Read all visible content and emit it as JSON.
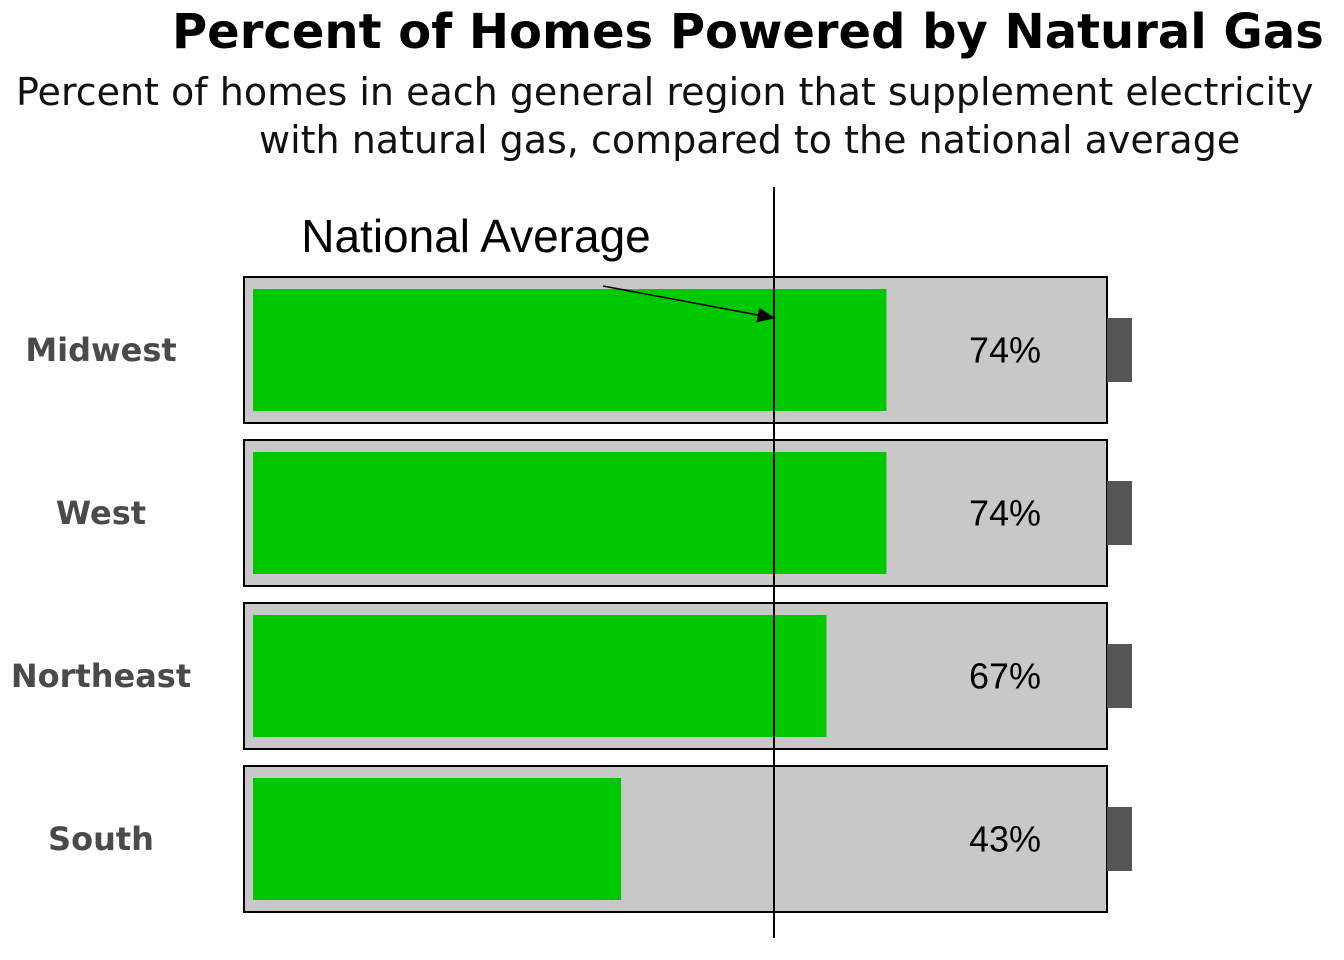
{
  "title": "Percent of Homes Powered by Natural Gas",
  "subtitle_line1": "Percent of homes in each general region that supplement electricity",
  "subtitle_line2": "with natural gas, compared to the national average",
  "colors": {
    "fill": "#00c800",
    "track": "#c8c8c8",
    "cap": "#555555",
    "label": "#4a4a4a",
    "outline": "#000000"
  },
  "chart_data": {
    "type": "bar",
    "orientation": "horizontal",
    "title": "Percent of Homes Powered by Natural Gas",
    "subtitle": "Percent of homes in each general region that supplement electricity with natural gas, compared to the national average",
    "categories": [
      "Midwest",
      "West",
      "Northeast",
      "South"
    ],
    "values": [
      74,
      74,
      67,
      43
    ],
    "value_labels": [
      "74%",
      "74%",
      "67%",
      "43%"
    ],
    "xlim": [
      0,
      100
    ],
    "reference_line": {
      "label": "National Average",
      "value": 61
    },
    "style": "battery"
  }
}
